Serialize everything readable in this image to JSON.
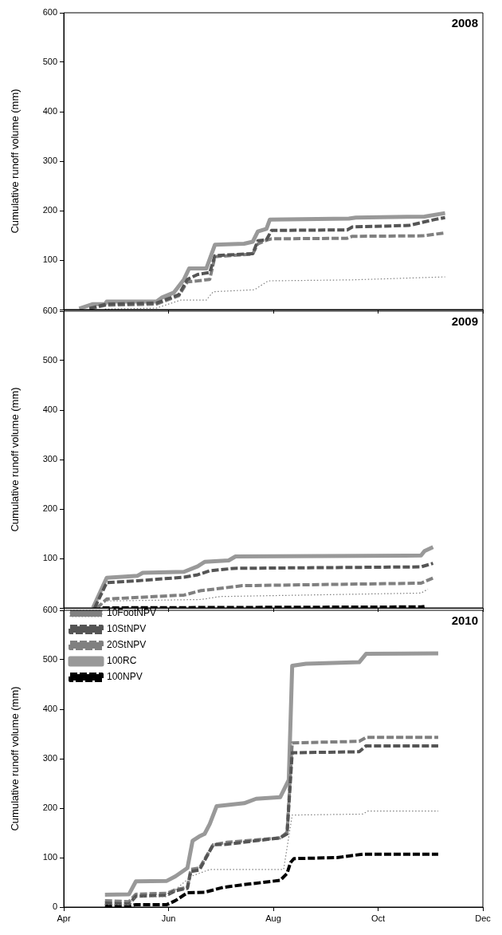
{
  "chart_data": [
    {
      "type": "line",
      "title": "2008",
      "ylabel": "Cumulative runoff volume (mm)",
      "xlim": [
        "--04-01",
        "--12-01"
      ],
      "xticks": [
        {
          "value": "--04-01",
          "label": null
        },
        {
          "value": "--06-01",
          "label": null
        },
        {
          "value": "--08-01",
          "label": null
        },
        {
          "value": "--10-01",
          "label": null
        },
        {
          "value": "--12-01",
          "label": null
        }
      ],
      "ylim": [
        0,
        600
      ],
      "yticks": [
        {
          "value": 0,
          "label": null
        },
        100,
        200,
        300,
        400,
        500,
        600
      ],
      "tick_labels": "y",
      "grid": false,
      "legend": false,
      "marker": "none",
      "series": [
        {
          "color": "#808080",
          "line_style": "dotted",
          "x": [
            "--04-25",
            "--05-25",
            "--06-08",
            "--06-23",
            "--06-27",
            "--07-21",
            "--07-29",
            "--09-16",
            "--11-09"
          ],
          "values": [
            1,
            3,
            19,
            19,
            36,
            40,
            58,
            60,
            66
          ]
        },
        {
          "color": "#555555",
          "line_style": "dashed",
          "x": [
            "--04-16",
            "--04-26",
            "--05-25",
            "--06-07",
            "--06-12",
            "--06-18",
            "--06-25",
            "--06-28",
            "--07-20",
            "--07-23",
            "--07-28",
            "--07-31",
            "--09-13",
            "--09-16",
            "--10-19",
            "--11-03",
            "--11-09"
          ],
          "values": [
            2,
            11,
            13,
            30,
            61,
            71,
            75,
            109,
            113,
            139,
            141,
            160,
            161,
            167,
            170,
            182,
            186
          ]
        },
        {
          "color": "#808080",
          "line_style": "dashed",
          "x": [
            "--04-16",
            "--04-26",
            "--05-25",
            "--06-07",
            "--06-12",
            "--06-18",
            "--06-25",
            "--06-28",
            "--07-20",
            "--07-23",
            "--07-28",
            "--07-31",
            "--09-13",
            "--09-16",
            "--10-27",
            "--11-09"
          ],
          "values": [
            2,
            9,
            11,
            28,
            56,
            58,
            61,
            107,
            112,
            133,
            140,
            143,
            144,
            148,
            149,
            155
          ]
        },
        {
          "color": "#999999",
          "line_style": "solid",
          "x": [
            "--04-10",
            "--04-18",
            "--04-25",
            "--04-26",
            "--05-25",
            "--05-28",
            "--06-04",
            "--06-10",
            "--06-13",
            "--06-23",
            "--06-28",
            "--07-15",
            "--07-20",
            "--07-23",
            "--07-28",
            "--07-30",
            "--09-14",
            "--09-18",
            "--10-28",
            "--11-09"
          ],
          "values": [
            2,
            11,
            11,
            16,
            16,
            24,
            34,
            61,
            83,
            83,
            131,
            133,
            137,
            158,
            163,
            182,
            184,
            186,
            188,
            195
          ]
        }
      ]
    },
    {
      "type": "line",
      "title": "2009",
      "ylabel": "Cumulative runoff volume (mm)",
      "xlim": [
        "--04-01",
        "--12-01"
      ],
      "xticks": [
        {
          "value": "--04-01",
          "label": null
        },
        {
          "value": "--06-01",
          "label": null
        },
        {
          "value": "--08-01",
          "label": null
        },
        {
          "value": "--10-01",
          "label": null
        },
        {
          "value": "--12-01",
          "label": null
        }
      ],
      "ylim": [
        0,
        600
      ],
      "yticks": [
        {
          "value": 0,
          "label": null
        },
        100,
        200,
        300,
        400,
        500,
        600
      ],
      "tick_labels": "y",
      "grid": false,
      "legend": false,
      "marker": "none",
      "series": [
        {
          "color": "#808080",
          "line_style": "dotted",
          "x": [
            "--04-20",
            "--04-26",
            "--06-20",
            "--07-01",
            "--10-26",
            "--10-30"
          ],
          "values": [
            0,
            14,
            17,
            23,
            30,
            38
          ]
        },
        {
          "color": "#555555",
          "line_style": "dashed",
          "x": [
            "--04-19",
            "--04-26",
            "--05-14",
            "--06-10",
            "--06-18",
            "--06-25",
            "--07-09",
            "--10-26",
            "--11-02"
          ],
          "values": [
            0,
            51,
            55,
            62,
            67,
            75,
            80,
            83,
            90
          ]
        },
        {
          "color": "#808080",
          "line_style": "dashed",
          "x": [
            "--04-20",
            "--04-22",
            "--04-26",
            "--06-10",
            "--06-20",
            "--06-30",
            "--07-14",
            "--10-26",
            "--11-03"
          ],
          "values": [
            0,
            5,
            18,
            26,
            35,
            39,
            45,
            50,
            62
          ]
        },
        {
          "color": "#999999",
          "line_style": "solid",
          "x": [
            "--04-18",
            "--04-26",
            "--05-14",
            "--05-17",
            "--06-10",
            "--06-18",
            "--06-22",
            "--07-06",
            "--07-10",
            "--10-26",
            "--10-28",
            "--11-02"
          ],
          "values": [
            0,
            61,
            65,
            71,
            73,
            84,
            93,
            96,
            104,
            106,
            115,
            123
          ]
        },
        {
          "color": "#000000",
          "line_style": "dashed",
          "x": [
            "--04-18",
            "--10-26",
            "--10-28"
          ],
          "values": [
            0,
            2,
            3
          ]
        }
      ]
    },
    {
      "type": "line",
      "title": "2010",
      "ylabel": "Cumulative runoff volume (mm)",
      "xlim": [
        "--04-01",
        "--12-01"
      ],
      "xticks": [
        {
          "value": "--04-01",
          "label": "Apr"
        },
        {
          "value": "--06-01",
          "label": "Jun"
        },
        {
          "value": "--08-01",
          "label": "Aug"
        },
        {
          "value": "--10-01",
          "label": "Oct"
        },
        {
          "value": "--12-01",
          "label": "Dec"
        }
      ],
      "ylim": [
        0,
        600
      ],
      "yticks": [
        0,
        100,
        200,
        300,
        400,
        500,
        600
      ],
      "grid": false,
      "legend": "top left",
      "marker": "none",
      "series": [
        {
          "name": "10FootNPV",
          "color": "#808080",
          "line_style": "dotted",
          "x": [
            "--04-25",
            "--05-09",
            "--05-13",
            "--05-31",
            "--06-05",
            "--06-14",
            "--06-25",
            "--08-07",
            "--08-12",
            "--09-22",
            "--09-25",
            "--11-05"
          ],
          "values": [
            5,
            5,
            21,
            21,
            35,
            62,
            76,
            76,
            186,
            188,
            194,
            194
          ]
        },
        {
          "name": "10StNPV",
          "color": "#555555",
          "line_style": "dashed",
          "x": [
            "--04-25",
            "--05-09",
            "--05-13",
            "--05-31",
            "--06-05",
            "--06-12",
            "--06-14",
            "--06-19",
            "--06-27",
            "--07-05",
            "--08-05",
            "--08-09",
            "--08-12",
            "--09-20",
            "--09-24",
            "--11-05"
          ],
          "values": [
            8,
            6,
            22,
            24,
            33,
            38,
            72,
            75,
            126,
            127,
            140,
            148,
            312,
            314,
            326,
            326
          ]
        },
        {
          "name": "20StNPV",
          "color": "#808080",
          "line_style": "dashed",
          "x": [
            "--04-25",
            "--05-09",
            "--05-13",
            "--05-31",
            "--06-05",
            "--06-12",
            "--06-14",
            "--06-19",
            "--06-27",
            "--07-05",
            "--08-05",
            "--08-09",
            "--08-12",
            "--09-20",
            "--09-24",
            "--11-05"
          ],
          "values": [
            13,
            11,
            26,
            28,
            35,
            40,
            76,
            79,
            126,
            131,
            140,
            151,
            332,
            335,
            343,
            343
          ]
        },
        {
          "name": "100RC",
          "color": "#999999",
          "line_style": "solid",
          "x": [
            "--04-25",
            "--05-09",
            "--05-13",
            "--05-31",
            "--06-05",
            "--06-12",
            "--06-15",
            "--06-19",
            "--06-22",
            "--06-25",
            "--06-29",
            "--07-15",
            "--07-22",
            "--08-05",
            "--08-10",
            "--08-12",
            "--08-20",
            "--09-20",
            "--09-24",
            "--11-05"
          ],
          "values": [
            25,
            26,
            52,
            53,
            62,
            79,
            134,
            143,
            148,
            168,
            204,
            210,
            219,
            222,
            257,
            488,
            492,
            495,
            512,
            513
          ]
        },
        {
          "name": "100NPV",
          "color": "#000000",
          "line_style": "dashed",
          "x": [
            "--04-25",
            "--05-09",
            "--05-13",
            "--05-31",
            "--06-05",
            "--06-12",
            "--06-22",
            "--07-03",
            "--07-14",
            "--08-05",
            "--08-09",
            "--08-11",
            "--08-13",
            "--09-07",
            "--09-22",
            "--11-05"
          ],
          "values": [
            3,
            2,
            5,
            5,
            13,
            29,
            30,
            40,
            45,
            54,
            68,
            90,
            98,
            100,
            107,
            107
          ]
        }
      ]
    }
  ]
}
